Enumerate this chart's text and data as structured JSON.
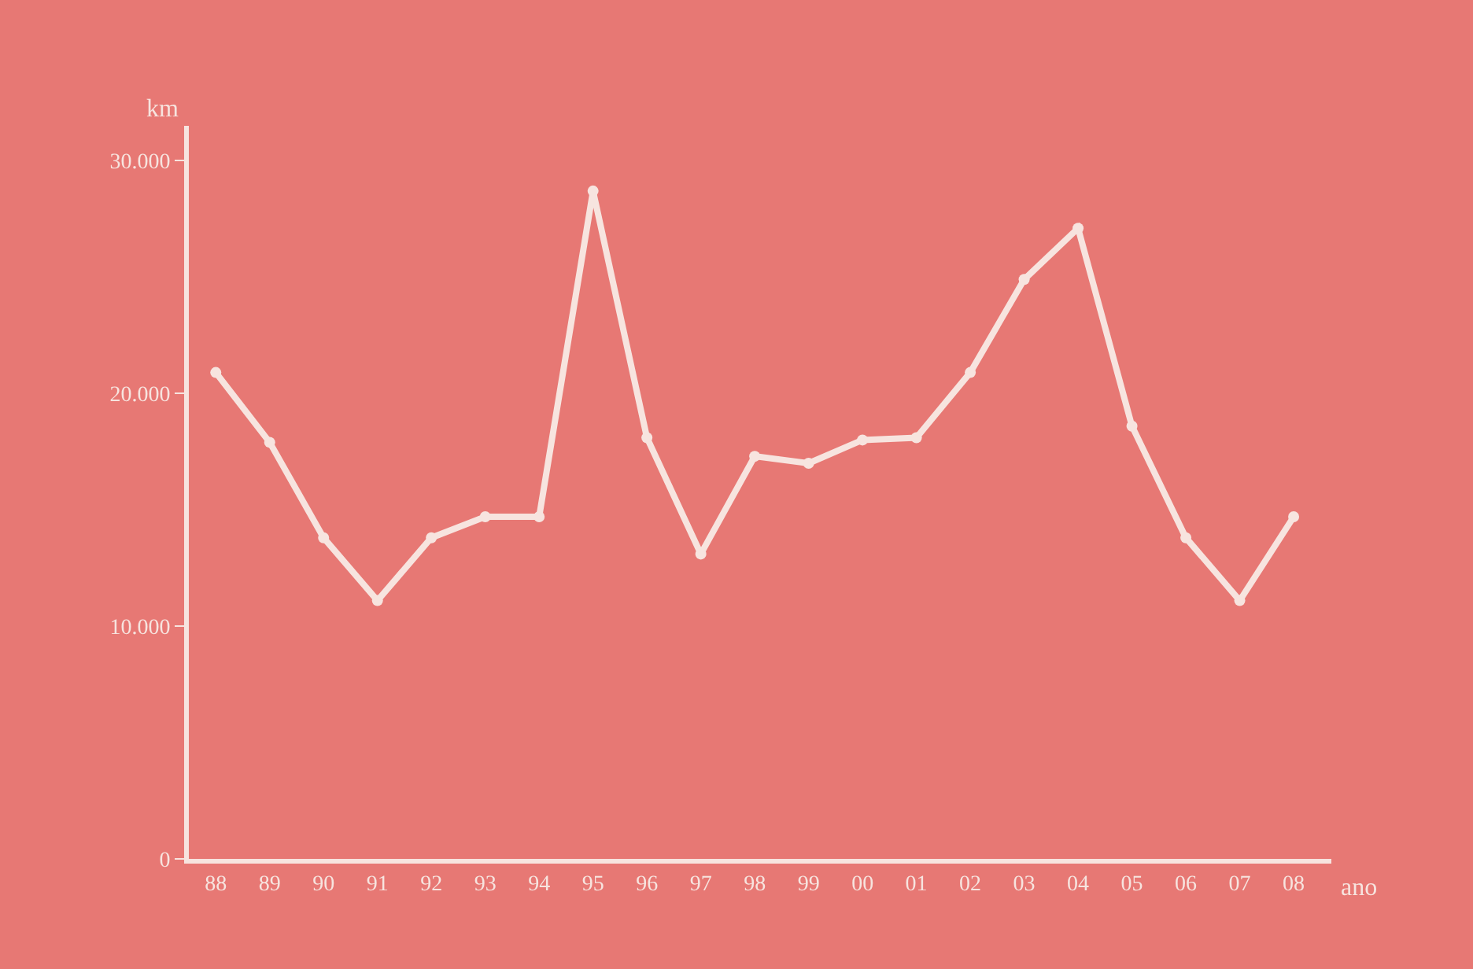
{
  "chart_data": {
    "type": "line",
    "xlabel": "ano",
    "ylabel": "km",
    "categories": [
      "88",
      "89",
      "90",
      "91",
      "92",
      "93",
      "94",
      "95",
      "96",
      "97",
      "98",
      "99",
      "00",
      "01",
      "02",
      "03",
      "04",
      "05",
      "06",
      "07",
      "08"
    ],
    "series": [
      {
        "color": "#f7e4df",
        "values": [
          20900,
          17900,
          13800,
          11100,
          13800,
          14700,
          14700,
          28700,
          18100,
          13100,
          17300,
          17000,
          18000,
          18100,
          20900,
          24900,
          27100,
          18600,
          13800,
          11100,
          14700
        ]
      }
    ],
    "ylim": [
      0,
      31500
    ],
    "yticks": [
      0,
      {
        "value": 10000,
        "label": "10.000"
      },
      {
        "value": 20000,
        "label": "20.000"
      },
      {
        "value": 30000,
        "label": "30.000"
      }
    ],
    "grid": false,
    "marker": "circle",
    "line_style": "solid"
  }
}
